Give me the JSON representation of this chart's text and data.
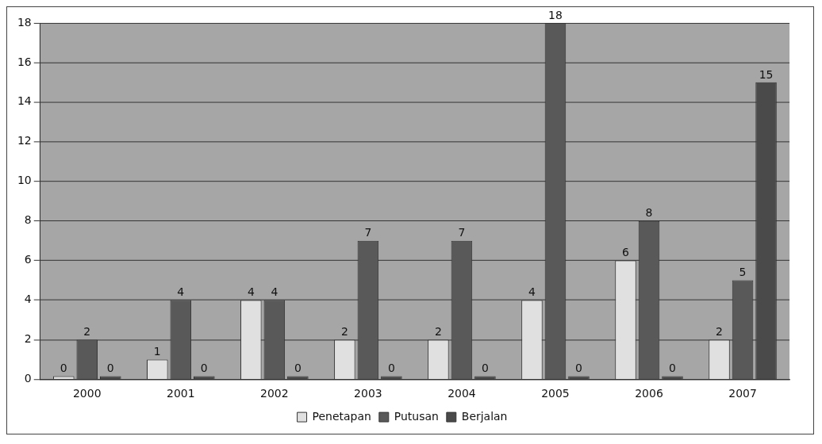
{
  "chart_data": {
    "type": "bar",
    "categories": [
      "2000",
      "2001",
      "2002",
      "2003",
      "2004",
      "2005",
      "2006",
      "2007"
    ],
    "series": [
      {
        "name": "Penetapan",
        "color": "#e0e0e0",
        "values": [
          0,
          1,
          4,
          2,
          2,
          4,
          6,
          2
        ]
      },
      {
        "name": "Putusan",
        "color": "#595959",
        "values": [
          2,
          4,
          4,
          7,
          7,
          18,
          8,
          5
        ]
      },
      {
        "name": "Berjalan",
        "color": "#4a4a4a",
        "values": [
          0,
          0,
          0,
          0,
          0,
          0,
          0,
          15
        ]
      }
    ],
    "ylim": [
      0,
      18
    ],
    "yticks": [
      0,
      2,
      4,
      6,
      8,
      10,
      12,
      14,
      16,
      18
    ],
    "grid": "y",
    "legend": "bottom",
    "data_labels": true
  }
}
